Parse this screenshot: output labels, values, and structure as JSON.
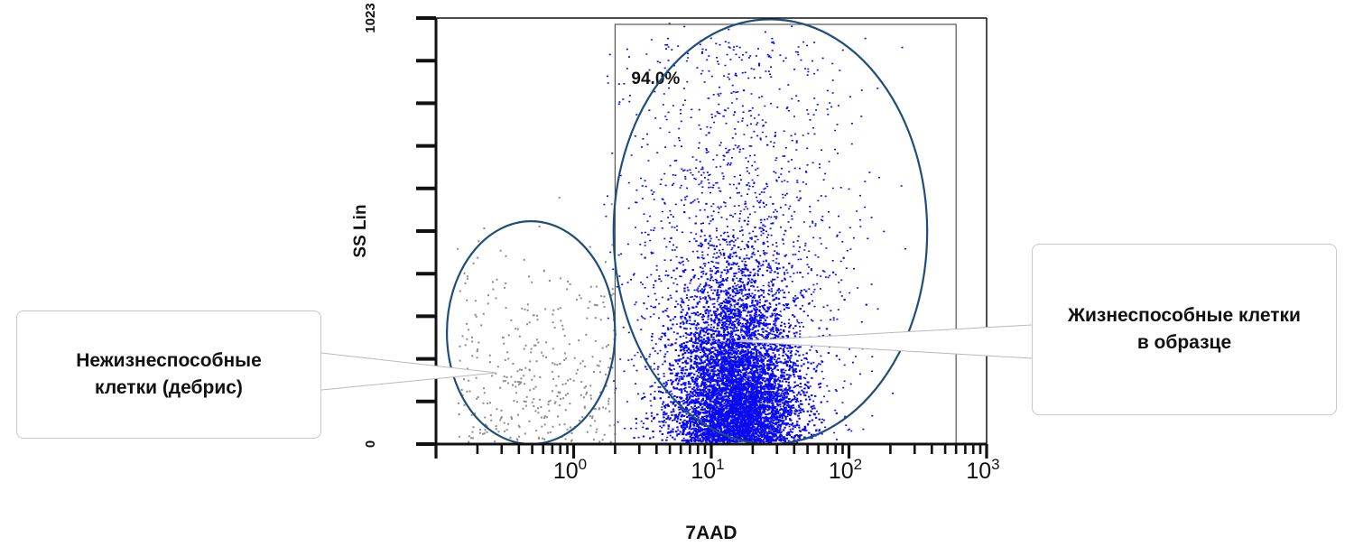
{
  "chart_data": {
    "type": "scatter",
    "xlabel": "7AAD",
    "ylabel": "SS Lin",
    "x_scale": "log",
    "xlim": [
      0.1,
      1000
    ],
    "ylim": [
      0,
      1023
    ],
    "x_ticks": [
      {
        "value": 1,
        "base": "10",
        "exp": "0"
      },
      {
        "value": 10,
        "base": "10",
        "exp": "1"
      },
      {
        "value": 100,
        "base": "10",
        "exp": "2"
      },
      {
        "value": 1000,
        "base": "10",
        "exp": "3"
      }
    ],
    "y_ticks": [
      {
        "value": 0,
        "label": "0"
      },
      {
        "value": 1023,
        "label": "1023"
      }
    ],
    "gate": {
      "x_range": [
        2,
        600
      ],
      "y_range": [
        0,
        1023
      ],
      "percent": "94.0%"
    },
    "series": [
      {
        "color": "#0a0af0",
        "population": "viable",
        "x_center": 15,
        "y_center": 230,
        "approx_points": 60000
      },
      {
        "color": "#8c8c8c",
        "population": "debris",
        "x_center": 0.8,
        "y_center": 130,
        "approx_points": 400
      }
    ],
    "gate_ellipses": [
      {
        "population": "debris",
        "x_range": [
          0.12,
          2.0
        ],
        "y_range": [
          0,
          535
        ]
      },
      {
        "population": "viable",
        "x_range": [
          1.95,
          370
        ],
        "y_range": [
          0,
          1020
        ]
      }
    ],
    "colors": {
      "events": "#0a0af0",
      "debris": "#8c8c8c",
      "ellipse": "#1f4e79",
      "axis": "#111111"
    }
  },
  "annotations": {
    "left_lines": [
      "Нежизнеспособные",
      "клетки (дебрис)"
    ],
    "right_lines": [
      "Жизнеспособные клетки",
      "в образце"
    ]
  }
}
